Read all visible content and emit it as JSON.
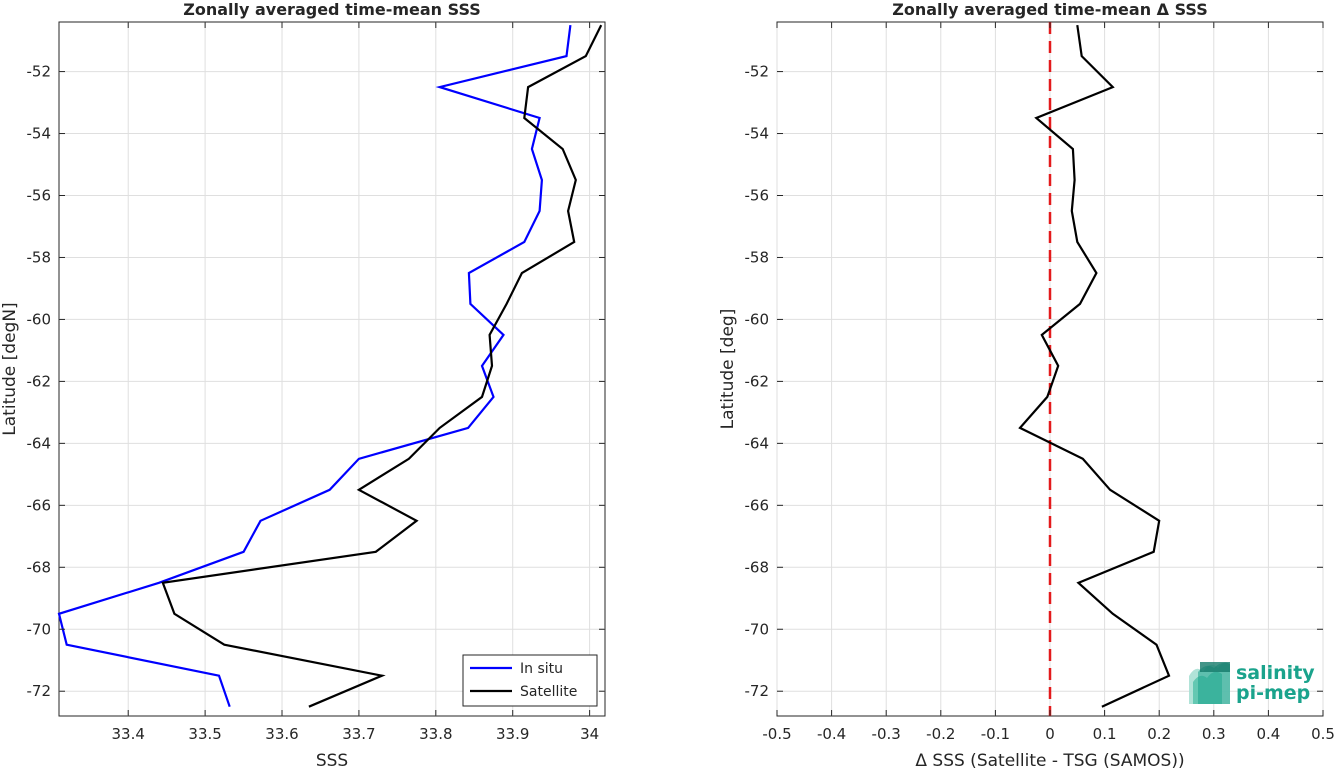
{
  "colors": {
    "insitu": "#0000ff",
    "satellite": "#000000",
    "zero_line": "#e31a1c",
    "logo_text": "#1aa38c"
  },
  "logo": {
    "line1": "salinity",
    "line2": "pi-mep"
  },
  "chart_data": [
    {
      "type": "line",
      "title": "Zonally averaged time-mean SSS",
      "xlabel": "SSS",
      "ylabel": "Latitude [degN]",
      "xlim": [
        33.31,
        34.02
      ],
      "ylim": [
        -72.8,
        -50.4
      ],
      "xticks": [
        33.4,
        33.5,
        33.6,
        33.7,
        33.8,
        33.9,
        34.0
      ],
      "xtick_labels": [
        "33.4",
        "33.5",
        "33.6",
        "33.7",
        "33.8",
        "33.9",
        "34"
      ],
      "yticks": [
        -52,
        -54,
        -56,
        -58,
        -60,
        -62,
        -64,
        -66,
        -68,
        -70,
        -72
      ],
      "ytick_labels": [
        "-52",
        "-54",
        "-56",
        "-58",
        "-60",
        "-62",
        "-64",
        "-66",
        "-68",
        "-70",
        "-72"
      ],
      "grid": true,
      "legend_position": "bottom-right",
      "series": [
        {
          "name": "In situ",
          "color_key": "insitu",
          "points": [
            [
              33.975,
              -50.5
            ],
            [
              33.97,
              -51.5
            ],
            [
              33.805,
              -52.5
            ],
            [
              33.935,
              -53.5
            ],
            [
              33.925,
              -54.5
            ],
            [
              33.938,
              -55.5
            ],
            [
              33.935,
              -56.5
            ],
            [
              33.915,
              -57.5
            ],
            [
              33.843,
              -58.5
            ],
            [
              33.845,
              -59.5
            ],
            [
              33.888,
              -60.5
            ],
            [
              33.86,
              -61.5
            ],
            [
              33.875,
              -62.5
            ],
            [
              33.842,
              -63.5
            ],
            [
              33.7,
              -64.5
            ],
            [
              33.662,
              -65.5
            ],
            [
              33.572,
              -66.5
            ],
            [
              33.55,
              -67.5
            ],
            [
              33.44,
              -68.5
            ],
            [
              33.31,
              -69.5
            ],
            [
              33.32,
              -70.5
            ],
            [
              33.518,
              -71.5
            ],
            [
              33.532,
              -72.5
            ]
          ]
        },
        {
          "name": "Satellite",
          "color_key": "satellite",
          "points": [
            [
              34.015,
              -50.5
            ],
            [
              33.995,
              -51.5
            ],
            [
              33.92,
              -52.5
            ],
            [
              33.915,
              -53.5
            ],
            [
              33.965,
              -54.5
            ],
            [
              33.982,
              -55.5
            ],
            [
              33.972,
              -56.5
            ],
            [
              33.98,
              -57.5
            ],
            [
              33.912,
              -58.5
            ],
            [
              33.892,
              -59.5
            ],
            [
              33.87,
              -60.5
            ],
            [
              33.873,
              -61.5
            ],
            [
              33.86,
              -62.5
            ],
            [
              33.805,
              -63.5
            ],
            [
              33.765,
              -64.5
            ],
            [
              33.7,
              -65.5
            ],
            [
              33.775,
              -66.5
            ],
            [
              33.722,
              -67.5
            ],
            [
              33.445,
              -68.5
            ],
            [
              33.46,
              -69.5
            ],
            [
              33.525,
              -70.5
            ],
            [
              33.73,
              -71.5
            ],
            [
              33.635,
              -72.5
            ]
          ]
        }
      ]
    },
    {
      "type": "line",
      "title": "Zonally averaged time-mean Δ SSS",
      "xlabel": "Δ SSS (Satellite - TSG (SAMOS))",
      "ylabel": "Latitude [deg]",
      "xlim": [
        -0.5,
        0.5
      ],
      "ylim": [
        -72.8,
        -50.4
      ],
      "xticks": [
        -0.5,
        -0.4,
        -0.3,
        -0.2,
        -0.1,
        0,
        0.1,
        0.2,
        0.3,
        0.4,
        0.5
      ],
      "xtick_labels": [
        "-0.5",
        "-0.4",
        "-0.3",
        "-0.2",
        "-0.1",
        "0",
        "0.1",
        "0.2",
        "0.3",
        "0.4",
        "0.5"
      ],
      "yticks": [
        -52,
        -54,
        -56,
        -58,
        -60,
        -62,
        -64,
        -66,
        -68,
        -70,
        -72
      ],
      "ytick_labels": [
        "-52",
        "-54",
        "-56",
        "-58",
        "-60",
        "-62",
        "-64",
        "-66",
        "-68",
        "-70",
        "-72"
      ],
      "grid": true,
      "reference_line": {
        "x": 0,
        "style": "dashed",
        "color_key": "zero_line"
      },
      "series": [
        {
          "color_key": "satellite",
          "points": [
            [
              0.05,
              -50.5
            ],
            [
              0.058,
              -51.5
            ],
            [
              0.115,
              -52.5
            ],
            [
              -0.025,
              -53.5
            ],
            [
              0.042,
              -54.5
            ],
            [
              0.045,
              -55.5
            ],
            [
              0.04,
              -56.5
            ],
            [
              0.05,
              -57.5
            ],
            [
              0.085,
              -58.5
            ],
            [
              0.055,
              -59.5
            ],
            [
              -0.015,
              -60.5
            ],
            [
              0.015,
              -61.5
            ],
            [
              -0.005,
              -62.5
            ],
            [
              -0.055,
              -63.5
            ],
            [
              0.06,
              -64.5
            ],
            [
              0.11,
              -65.5
            ],
            [
              0.2,
              -66.5
            ],
            [
              0.19,
              -67.5
            ],
            [
              0.052,
              -68.5
            ],
            [
              0.115,
              -69.5
            ],
            [
              0.195,
              -70.5
            ],
            [
              0.218,
              -71.5
            ],
            [
              0.095,
              -72.5
            ]
          ]
        }
      ]
    }
  ]
}
